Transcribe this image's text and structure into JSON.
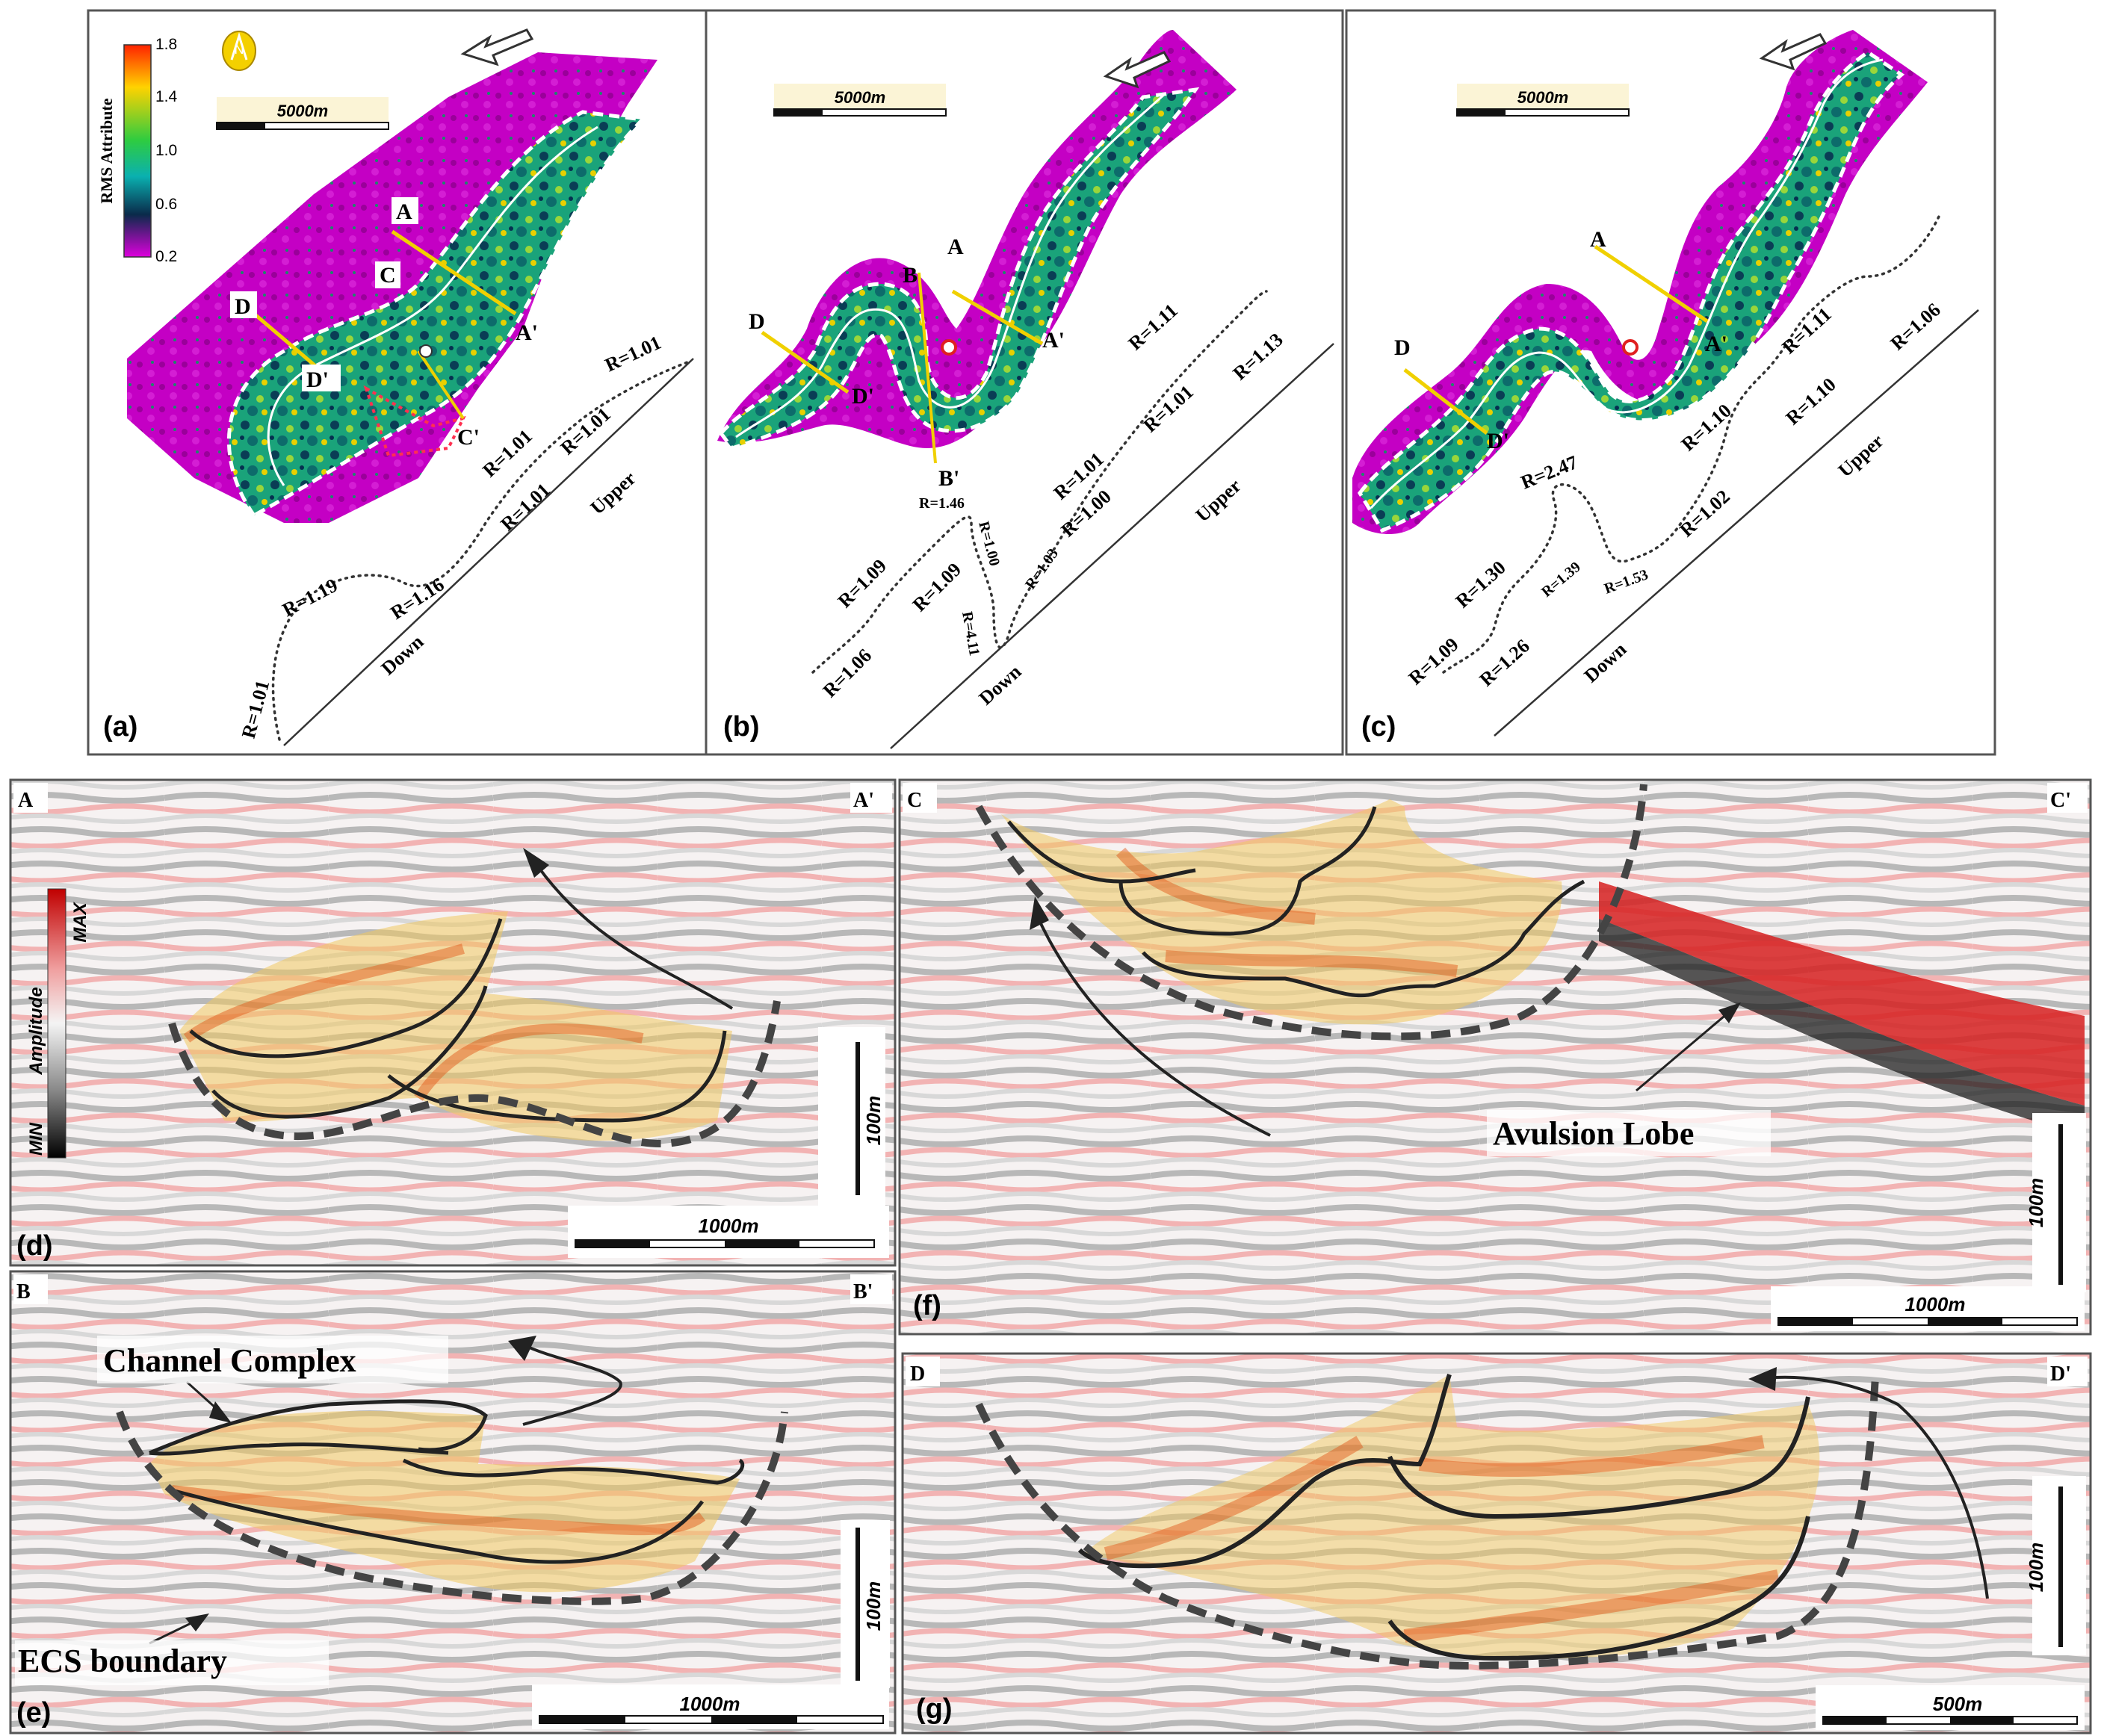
{
  "panels": {
    "a": {
      "letter": "(a)",
      "colorbar": {
        "title": "RMS Attribute",
        "ticks": [
          "1.8",
          "1.4",
          "1.0",
          "0.6",
          "0.2"
        ],
        "colors": [
          "#ff2200",
          "#ffd200",
          "#2ecc40",
          "#0ab0b0",
          "#0a2a4a",
          "#dd00dd"
        ]
      },
      "scale_label": "5000m",
      "north_label": "N",
      "sections": [
        "A",
        "A'",
        "C",
        "C'",
        "D",
        "D'"
      ],
      "ratios": [
        "R=1.01",
        "R=1.01",
        "R=1.01",
        "R=1.01",
        "R=1.16",
        "R=1.19",
        "R=1.01"
      ],
      "axis": {
        "down": "Down",
        "upper": "Upper"
      }
    },
    "b": {
      "letter": "(b)",
      "scale_label": "5000m",
      "sections": [
        "A",
        "A'",
        "B",
        "B'",
        "D",
        "D'"
      ],
      "ratios": [
        "R=1.11",
        "R=1.13",
        "R=1.01",
        "R=1.01",
        "R=1.00",
        "R=1.03",
        "R=1.00",
        "R=1.46",
        "R=4.11",
        "R=1.09",
        "R=1.09",
        "R=1.06"
      ],
      "axis": {
        "down": "Down",
        "upper": "Upper"
      }
    },
    "c": {
      "letter": "(c)",
      "scale_label": "5000m",
      "sections": [
        "A",
        "A'",
        "D",
        "D'"
      ],
      "ratios": [
        "R=1.11",
        "R=1.06",
        "R=1.10",
        "R=1.10",
        "R=1.02",
        "R=2.47",
        "R=1.39",
        "R=1.53",
        "R=1.30",
        "R=1.26",
        "R=1.09"
      ],
      "axis": {
        "down": "Down",
        "upper": "Upper"
      }
    },
    "d": {
      "letter": "(d)",
      "left": "A",
      "right": "A'",
      "amplitude": {
        "label": "Amplitude",
        "max": "MAX",
        "min": "MIN"
      },
      "vscale": "100m",
      "hscale": "1000m"
    },
    "e": {
      "letter": "(e)",
      "left": "B",
      "right": "B'",
      "annotations": [
        "Channel Complex",
        "ECS boundary"
      ],
      "vscale": "100m",
      "hscale": "1000m"
    },
    "f": {
      "letter": "(f)",
      "left": "C",
      "right": "C'",
      "annotations": [
        "Avulsion Lobe"
      ],
      "vscale": "100m",
      "hscale": "1000m"
    },
    "g": {
      "letter": "(g)",
      "left": "D",
      "right": "D'",
      "vscale": "100m",
      "hscale": "500m"
    }
  }
}
